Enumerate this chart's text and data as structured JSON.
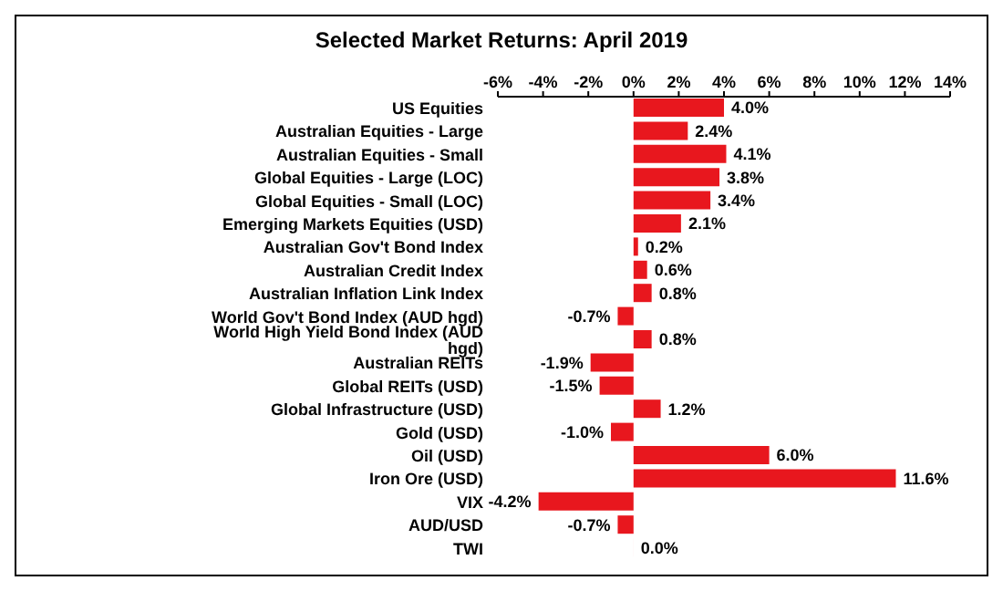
{
  "chart_data": {
    "type": "bar",
    "orientation": "horizontal",
    "title": "Selected Market Returns: April 2019",
    "categories": [
      "US Equities",
      "Australian Equities - Large",
      "Australian Equities - Small",
      "Global Equities - Large (LOC)",
      "Global Equities - Small (LOC)",
      "Emerging Markets Equities (USD)",
      "Australian Gov't Bond Index",
      "Australian Credit Index",
      "Australian Inflation Link Index",
      "World Gov't Bond Index (AUD hgd)",
      "World High Yield Bond Index (AUD hgd)",
      "Australian REITs",
      "Global REITs (USD)",
      "Global Infrastructure (USD)",
      "Gold (USD)",
      "Oil (USD)",
      "Iron Ore (USD)",
      "VIX",
      "AUD/USD",
      "TWI"
    ],
    "values": [
      4.0,
      2.4,
      4.1,
      3.8,
      3.4,
      2.1,
      0.2,
      0.6,
      0.8,
      -0.7,
      0.8,
      -1.9,
      -1.5,
      1.2,
      -1.0,
      6.0,
      11.6,
      -4.2,
      -0.7,
      0.0
    ],
    "value_labels": [
      "4.0%",
      "2.4%",
      "4.1%",
      "3.8%",
      "3.4%",
      "2.1%",
      "0.2%",
      "0.6%",
      "0.8%",
      "-0.7%",
      "0.8%",
      "-1.9%",
      "-1.5%",
      "1.2%",
      "-1.0%",
      "6.0%",
      "11.6%",
      "-4.2%",
      "-0.7%",
      "0.0%"
    ],
    "color": "#e8171e",
    "xlim": [
      -6,
      14
    ],
    "xticks": [
      {
        "value": -6,
        "label": "-6%"
      },
      {
        "value": -4,
        "label": "-4%"
      },
      {
        "value": -2,
        "label": "-2%"
      },
      {
        "value": 0,
        "label": "0%"
      },
      {
        "value": 2,
        "label": "2%"
      },
      {
        "value": 4,
        "label": "4%"
      },
      {
        "value": 6,
        "label": "6%"
      },
      {
        "value": 8,
        "label": "8%"
      },
      {
        "value": 10,
        "label": "10%"
      },
      {
        "value": 12,
        "label": "12%"
      },
      {
        "value": 14,
        "label": "14%"
      }
    ],
    "grid": false,
    "legend": false
  }
}
